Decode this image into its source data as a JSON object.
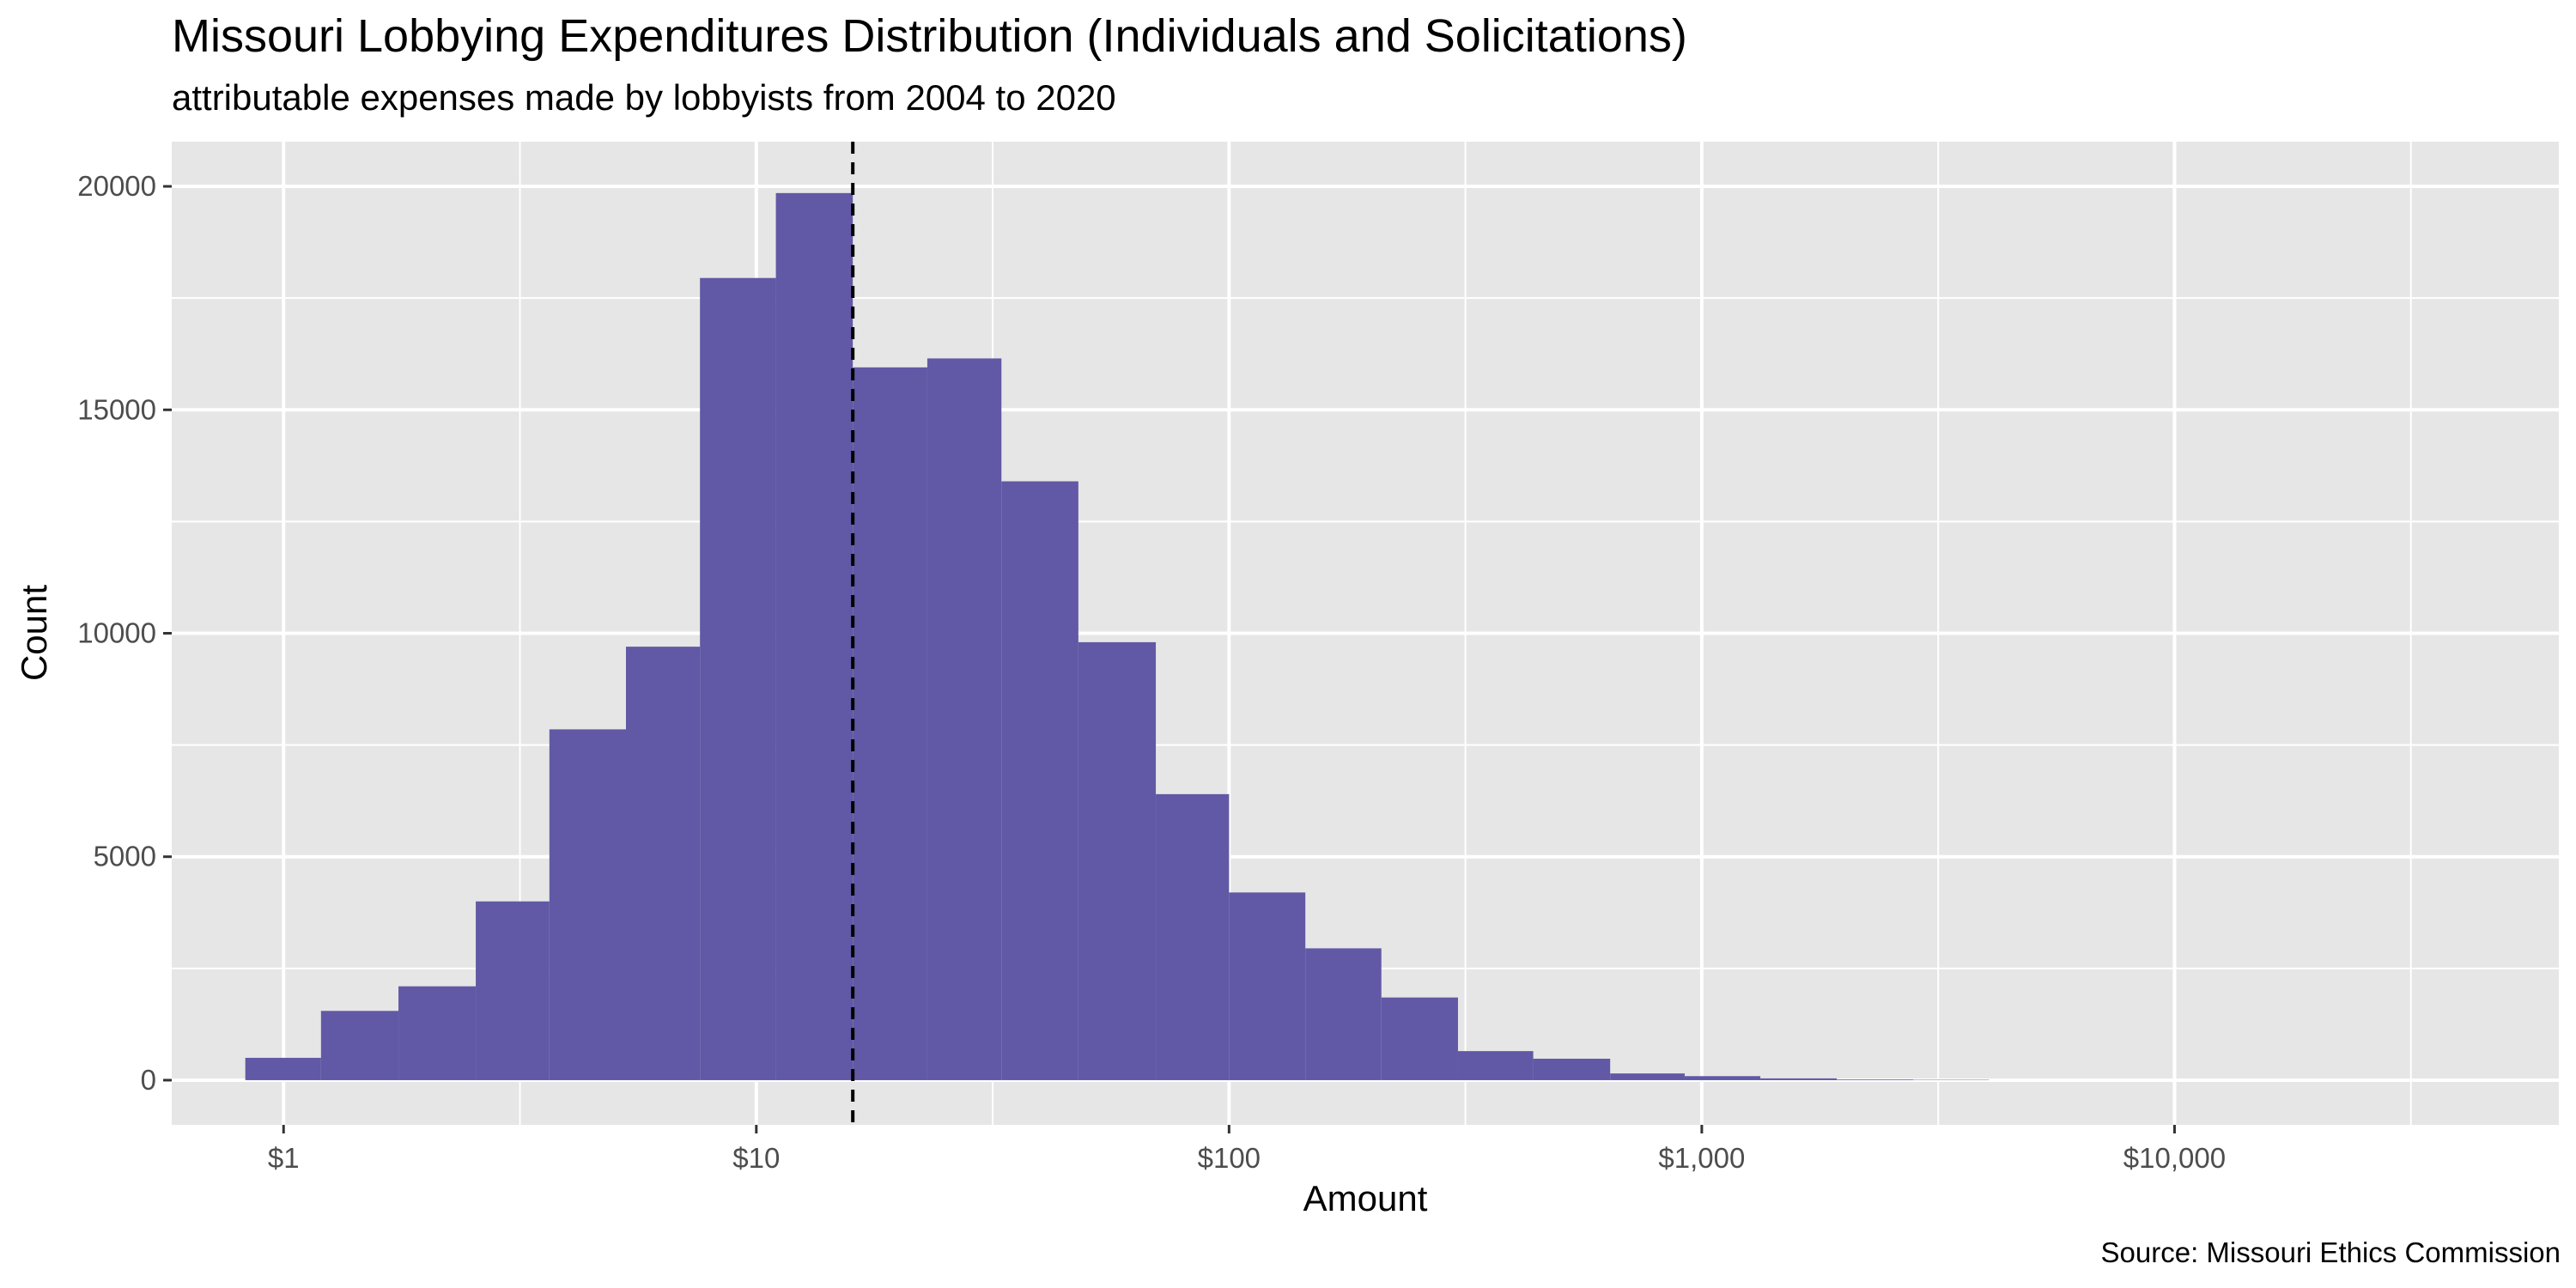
{
  "chart_data": {
    "type": "bar",
    "title": "Missouri Lobbying Expenditures Distribution (Individuals and Solicitations)",
    "subtitle": "attributable expenses made by lobbyists from 2004 to 2020",
    "xlabel": "Amount",
    "ylabel": "Count",
    "caption": "Source: Missouri Ethics Commission",
    "x_scale": "log10",
    "xlim": [
      0.58,
      65000
    ],
    "ylim": [
      -1000,
      21000
    ],
    "x_ticks": [
      {
        "value": 1,
        "label": "$1"
      },
      {
        "value": 10,
        "label": "$10"
      },
      {
        "value": 100,
        "label": "$100"
      },
      {
        "value": 1000,
        "label": "$1,000"
      },
      {
        "value": 10000,
        "label": "$10,000"
      }
    ],
    "y_ticks": [
      {
        "value": 0,
        "label": "0"
      },
      {
        "value": 5000,
        "label": "5000"
      },
      {
        "value": 10000,
        "label": "10000"
      },
      {
        "value": 15000,
        "label": "15000"
      },
      {
        "value": 20000,
        "label": "20000"
      }
    ],
    "bars": [
      {
        "x0": 0.83,
        "x1": 1.2,
        "count": 500
      },
      {
        "x0": 1.2,
        "x1": 1.75,
        "count": 1550
      },
      {
        "x0": 1.75,
        "x1": 2.55,
        "count": 2100
      },
      {
        "x0": 2.55,
        "x1": 3.65,
        "count": 4000
      },
      {
        "x0": 3.65,
        "x1": 5.3,
        "count": 7850
      },
      {
        "x0": 5.3,
        "x1": 7.6,
        "count": 9700
      },
      {
        "x0": 7.6,
        "x1": 11,
        "count": 17950
      },
      {
        "x0": 11,
        "x1": 16,
        "count": 19850
      },
      {
        "x0": 16,
        "x1": 23,
        "count": 15950
      },
      {
        "x0": 23,
        "x1": 33,
        "count": 16150
      },
      {
        "x0": 33,
        "x1": 48,
        "count": 13400
      },
      {
        "x0": 48,
        "x1": 70,
        "count": 9800
      },
      {
        "x0": 70,
        "x1": 100,
        "count": 6400
      },
      {
        "x0": 100,
        "x1": 145,
        "count": 4200
      },
      {
        "x0": 145,
        "x1": 210,
        "count": 2950
      },
      {
        "x0": 210,
        "x1": 305,
        "count": 1850
      },
      {
        "x0": 305,
        "x1": 440,
        "count": 650
      },
      {
        "x0": 440,
        "x1": 640,
        "count": 480
      },
      {
        "x0": 640,
        "x1": 920,
        "count": 150
      },
      {
        "x0": 920,
        "x1": 1330,
        "count": 90
      },
      {
        "x0": 1330,
        "x1": 1930,
        "count": 40
      },
      {
        "x0": 1930,
        "x1": 2800,
        "count": 15
      },
      {
        "x0": 2800,
        "x1": 4050,
        "count": 8
      }
    ],
    "median_line": {
      "value": 16
    },
    "grid": true,
    "bar_color": "#6159a5",
    "panel_color": "#e6e6e6",
    "grid_color": "#ffffff"
  }
}
